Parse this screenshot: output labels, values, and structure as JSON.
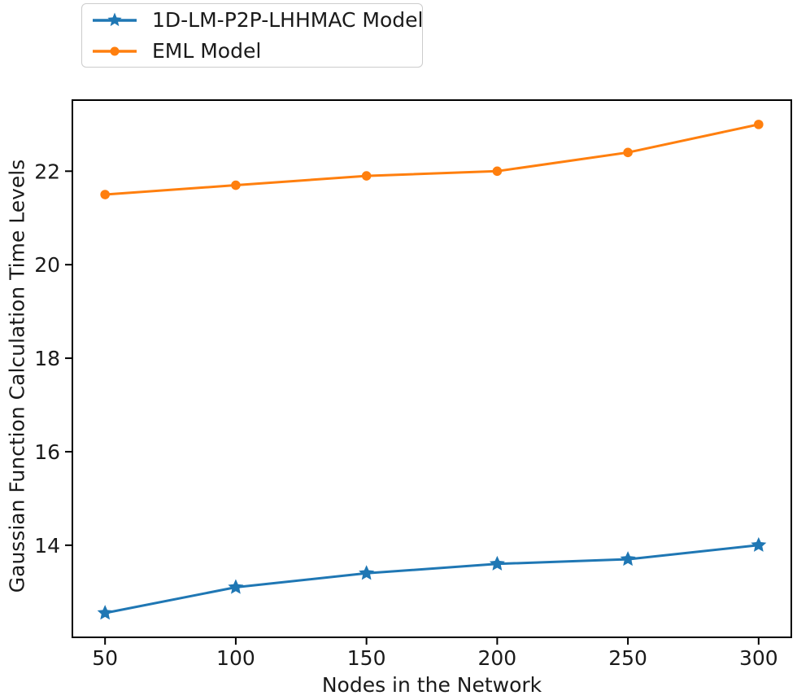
{
  "figure": {
    "background": "#ffffff"
  },
  "legend": {
    "items": [
      {
        "label": "1D-LM-P2P-LHHMAC Model",
        "marker": "star-icon",
        "color": "#1f77b4"
      },
      {
        "label": "EML Model",
        "marker": "circle-icon",
        "color": "#ff7f0e"
      }
    ]
  },
  "chart_data": {
    "type": "line",
    "title": "",
    "xlabel": "Nodes in the Network",
    "ylabel": "Gaussian Function Calculation Time Levels",
    "x": [
      50,
      100,
      150,
      200,
      250,
      300
    ],
    "series": [
      {
        "name": "1D-LM-P2P-LHHMAC Model",
        "color": "#1f77b4",
        "marker": "star",
        "values": [
          12.55,
          13.1,
          13.4,
          13.6,
          13.7,
          14.0
        ]
      },
      {
        "name": "EML Model",
        "color": "#ff7f0e",
        "marker": "circle",
        "values": [
          21.5,
          21.7,
          21.9,
          22.0,
          22.4,
          23.0
        ]
      }
    ],
    "xticks": [
      "50",
      "100",
      "150",
      "200",
      "250",
      "300"
    ],
    "yticks": [
      "14",
      "16",
      "18",
      "20",
      "22"
    ],
    "xlim": [
      37.5,
      312.5
    ],
    "ylim": [
      12.03,
      23.52
    ],
    "grid": false,
    "legend_position": "upper-left-outside-axes",
    "axis_color": "#000000",
    "text_color": "#1a1a1a"
  }
}
